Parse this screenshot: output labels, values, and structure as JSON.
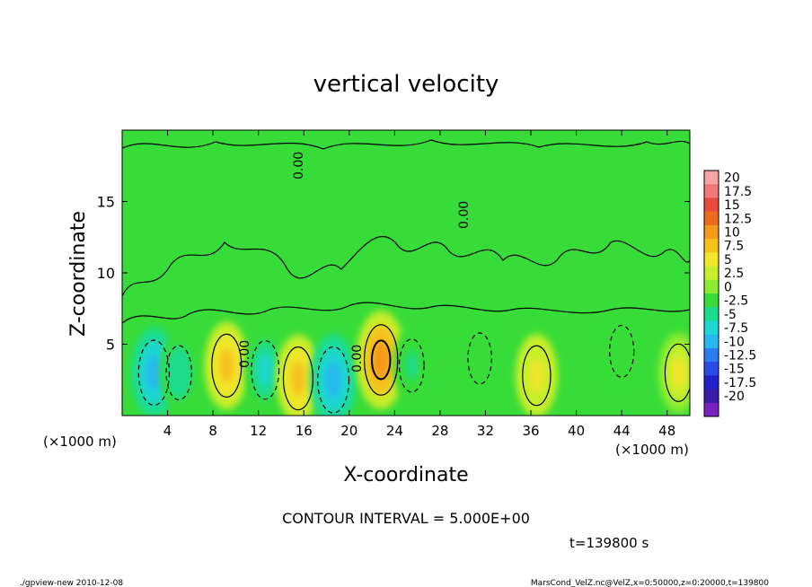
{
  "chart_data": {
    "type": "heatmap",
    "title": "vertical velocity",
    "xlabel": "X-coordinate",
    "ylabel": "Z-coordinate",
    "x_unit_label": "(×1000 m)",
    "x_unit_label_right": "(×1000 m)",
    "xlim": [
      0,
      50
    ],
    "ylim": [
      0,
      20
    ],
    "x_ticks": [
      4,
      8,
      12,
      16,
      20,
      24,
      28,
      32,
      36,
      40,
      44,
      48
    ],
    "y_ticks": [
      5,
      10,
      15
    ],
    "colorbar": {
      "levels": [
        20,
        17.5,
        15,
        12.5,
        10,
        7.5,
        5,
        2.5,
        0,
        -2.5,
        -5,
        -7.5,
        -10,
        -12.5,
        -15,
        -17.5,
        -20
      ],
      "colors": [
        "#f5a3a3",
        "#f07878",
        "#e84a3a",
        "#ef6a1c",
        "#f39a16",
        "#f7c21a",
        "#f2e62a",
        "#c8ee2a",
        "#8cec30",
        "#38dc38",
        "#1cdc8e",
        "#1fd7d2",
        "#26b8f0",
        "#2a7cf2",
        "#2a4ae6",
        "#2020c8",
        "#3a1aa8",
        "#7a20c0"
      ]
    },
    "contour_interval_label": "CONTOUR INTERVAL = 5.000E+00",
    "contour_label": "0.00",
    "time_label": "t=139800  s",
    "cells": [
      {
        "x": 2.8,
        "z": 3.0,
        "value": -8.5
      },
      {
        "x": 5.0,
        "z": 3.0,
        "value": -3.5
      },
      {
        "x": 9.2,
        "z": 3.5,
        "value": 7.5
      },
      {
        "x": 12.6,
        "z": 3.2,
        "value": -5.5
      },
      {
        "x": 15.5,
        "z": 2.6,
        "value": 7.5
      },
      {
        "x": 18.6,
        "z": 2.5,
        "value": -9.0
      },
      {
        "x": 22.8,
        "z": 3.9,
        "value": 11.0
      },
      {
        "x": 25.5,
        "z": 3.5,
        "value": -3.0
      },
      {
        "x": 31.5,
        "z": 4.0,
        "value": -2.0
      },
      {
        "x": 36.5,
        "z": 2.8,
        "value": 6.0
      },
      {
        "x": 44.0,
        "z": 4.5,
        "value": -2.5
      },
      {
        "x": 49.0,
        "z": 3.0,
        "value": 5.0
      }
    ]
  },
  "footer": {
    "left": "./gpview-new   2010-12-08",
    "right": "MarsCond_VelZ.nc@VelZ,x=0:50000,z=0:20000,t=139800"
  }
}
